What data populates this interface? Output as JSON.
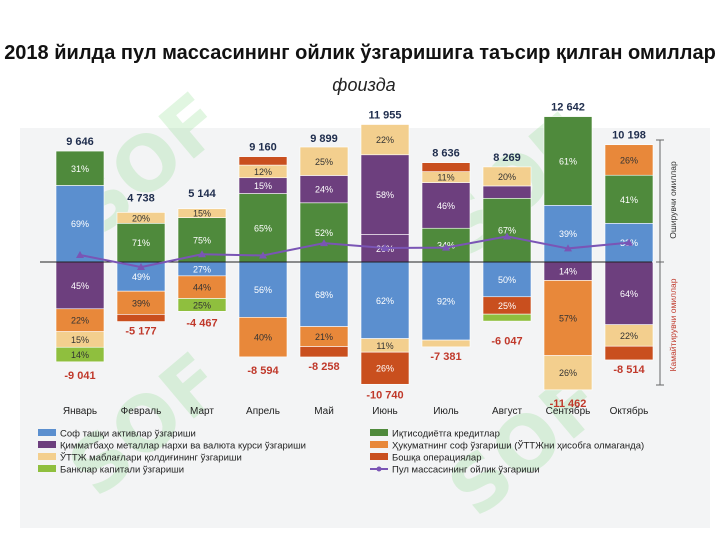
{
  "title": "2018 йилда пул массасининг ойлик ўзгаришига таъсир қилган омиллар",
  "subtitle": "фоизда",
  "side_labels": {
    "positive": "Оширувчи омиллар",
    "negative": "Камайтирувчи омиллар"
  },
  "watermark": "SOF",
  "colors": {
    "blue": "#5b8fcf",
    "green": "#4f8a3c",
    "purple": "#6d3f7e",
    "orange": "#e8883a",
    "tan": "#f3cf8e",
    "red": "#c94f1e",
    "lime": "#8fbf3e",
    "line": "#7a55b5"
  },
  "chart_data": {
    "type": "bar",
    "stacked": true,
    "categories": [
      "Январь",
      "Февраль",
      "Март",
      "Апрель",
      "Май",
      "Июнь",
      "Июль",
      "Август",
      "Сентябрь",
      "Октябрь"
    ],
    "totals_positive": [
      "9 646",
      "4 738",
      "5 144",
      "9 160",
      "9 899",
      "11 955",
      "8 636",
      "8 269",
      "12 642",
      "10 198"
    ],
    "totals_negative": [
      "-9 041",
      "-5 177",
      "-4 467",
      "-8 594",
      "-8 258",
      "-10 740",
      "-7 381",
      "-6 047",
      "-11 462",
      "-8 514"
    ],
    "positive_segments": [
      [
        {
          "series": "blue",
          "pct": 69,
          "label": "69%"
        },
        {
          "series": "green",
          "pct": 31,
          "label": "31%"
        }
      ],
      [
        {
          "series": "green",
          "pct": 71,
          "label": "71%"
        },
        {
          "series": "tan",
          "pct": 20,
          "label": "20%"
        }
      ],
      [
        {
          "series": "green",
          "pct": 75,
          "label": "75%"
        },
        {
          "series": "tan",
          "pct": 15,
          "label": "15%"
        }
      ],
      [
        {
          "series": "green",
          "pct": 65,
          "label": "65%"
        },
        {
          "series": "purple",
          "pct": 15,
          "label": "15%"
        },
        {
          "series": "tan",
          "pct": 12,
          "label": "12%"
        },
        {
          "series": "red",
          "pct": 8,
          "label": ""
        }
      ],
      [
        {
          "series": "green",
          "pct": 52,
          "label": "52%"
        },
        {
          "series": "purple",
          "pct": 24,
          "label": "24%"
        },
        {
          "series": "tan",
          "pct": 25,
          "label": "25%"
        }
      ],
      [
        {
          "series": "purple",
          "pct": 20,
          "label": "20%"
        },
        {
          "series": "purple",
          "pct": 58,
          "label": "58%"
        },
        {
          "series": "tan",
          "pct": 22,
          "label": "22%"
        }
      ],
      [
        {
          "series": "green",
          "pct": 34,
          "label": "34%"
        },
        {
          "series": "purple",
          "pct": 46,
          "label": "46%"
        },
        {
          "series": "tan",
          "pct": 11,
          "label": "11%"
        },
        {
          "series": "red",
          "pct": 9,
          "label": ""
        }
      ],
      [
        {
          "series": "green",
          "pct": 67,
          "label": "67%"
        },
        {
          "series": "purple",
          "pct": 13,
          "label": ""
        },
        {
          "series": "tan",
          "pct": 20,
          "label": "20%"
        }
      ],
      [
        {
          "series": "blue",
          "pct": 39,
          "label": "39%"
        },
        {
          "series": "green",
          "pct": 61,
          "label": "61%"
        }
      ],
      [
        {
          "series": "blue",
          "pct": 33,
          "label": "33%"
        },
        {
          "series": "green",
          "pct": 41,
          "label": "41%"
        },
        {
          "series": "orange",
          "pct": 26,
          "label": "26%"
        }
      ]
    ],
    "negative_segments": [
      [
        {
          "series": "purple",
          "pct": 45,
          "label": "45%"
        },
        {
          "series": "orange",
          "pct": 22,
          "label": "22%"
        },
        {
          "series": "tan",
          "pct": 15,
          "label": "15%"
        },
        {
          "series": "lime",
          "pct": 14,
          "label": "14%"
        }
      ],
      [
        {
          "series": "blue",
          "pct": 49,
          "label": "49%"
        },
        {
          "series": "orange",
          "pct": 39,
          "label": "39%"
        },
        {
          "series": "red",
          "pct": 12,
          "label": ""
        }
      ],
      [
        {
          "series": "blue",
          "pct": 27,
          "label": "27%"
        },
        {
          "series": "orange",
          "pct": 44,
          "label": "44%"
        },
        {
          "series": "lime",
          "pct": 25,
          "label": "25%"
        }
      ],
      [
        {
          "series": "blue",
          "pct": 56,
          "label": "56%"
        },
        {
          "series": "orange",
          "pct": 40,
          "label": "40%"
        }
      ],
      [
        {
          "series": "blue",
          "pct": 68,
          "label": "68%"
        },
        {
          "series": "orange",
          "pct": 21,
          "label": "21%"
        },
        {
          "series": "red",
          "pct": 11,
          "label": ""
        }
      ],
      [
        {
          "series": "blue",
          "pct": 62,
          "label": "62%"
        },
        {
          "series": "tan",
          "pct": 11,
          "label": "11%"
        },
        {
          "series": "red",
          "pct": 26,
          "label": "26%"
        }
      ],
      [
        {
          "series": "blue",
          "pct": 92,
          "label": "92%"
        },
        {
          "series": "tan",
          "pct": 8,
          "label": ""
        }
      ],
      [
        {
          "series": "blue",
          "pct": 50,
          "label": "50%"
        },
        {
          "series": "red",
          "pct": 25,
          "label": "25%"
        },
        {
          "series": "lime",
          "pct": 10,
          "label": ""
        }
      ],
      [
        {
          "series": "purple",
          "pct": 14,
          "label": "14%"
        },
        {
          "series": "orange",
          "pct": 57,
          "label": "57%"
        },
        {
          "series": "tan",
          "pct": 26,
          "label": "26%"
        }
      ],
      [
        {
          "series": "purple",
          "pct": 64,
          "label": "64%"
        },
        {
          "series": "tan",
          "pct": 22,
          "label": "22%"
        },
        {
          "series": "red",
          "pct": 14,
          "label": ""
        }
      ]
    ],
    "line_series": {
      "name": "Пул массасининг ойлик ўзгариши",
      "values": [
        605,
        -439,
        677,
        566,
        1641,
        1215,
        1255,
        2222,
        1180,
        1684
      ]
    },
    "legend": [
      {
        "series": "blue",
        "label": "Соф ташқи активлар ўзгариши"
      },
      {
        "series": "green",
        "label": "Иқтисодиётга кредитлар"
      },
      {
        "series": "purple",
        "label": "Қимматбаҳо металлар нархи ва валюта курси ўзгариши"
      },
      {
        "series": "orange",
        "label": "Ҳукуматнинг соф ўзгариши (ЎТТЖни ҳисобга олмаганда)"
      },
      {
        "series": "tan",
        "label": "ЎТТЖ маблағлари қолдиғининг ўзгариши"
      },
      {
        "series": "red",
        "label": "Бошқа операциялар"
      },
      {
        "series": "lime",
        "label": "Банклар капитали ўзгариши"
      },
      {
        "series": "line",
        "label": "Пул массасининг ойлик ўзгариши"
      }
    ]
  }
}
